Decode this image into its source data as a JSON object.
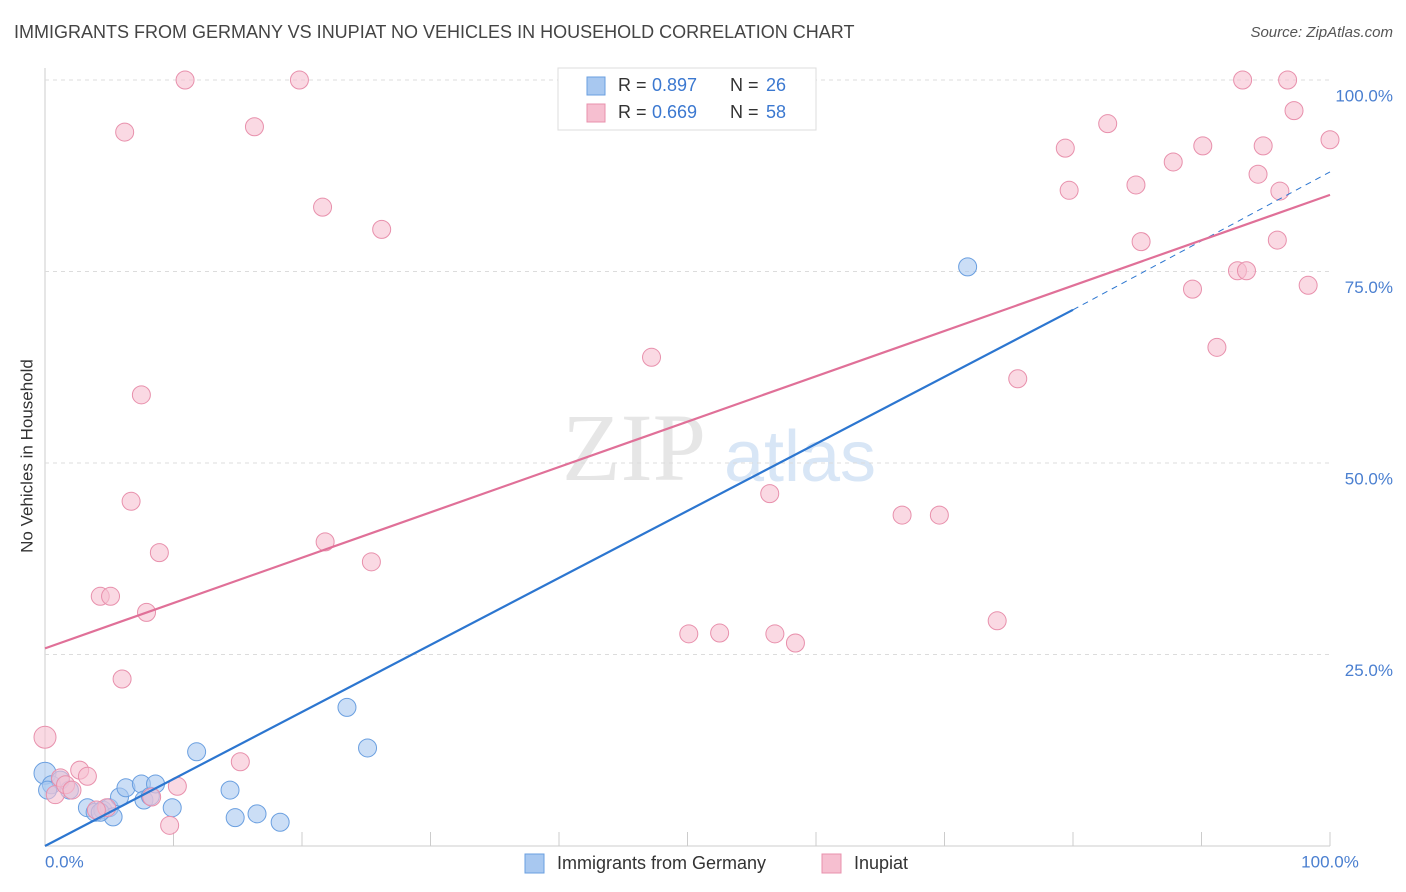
{
  "chart_data": {
    "type": "scatter",
    "title": "IMMIGRANTS FROM GERMANY VS INUPIAT NO VEHICLES IN HOUSEHOLD CORRELATION CHART",
    "source": "Source: ZipAtlas.com",
    "watermark": [
      "ZIP",
      "atlas"
    ],
    "y_label": "No Vehicles in Household",
    "xlim": [
      0,
      100
    ],
    "ylim": [
      0,
      100
    ],
    "xticks": [
      {
        "value": 0,
        "label": "0.0%"
      },
      {
        "value": 100,
        "label": "100.0%"
      }
    ],
    "xtick_marks": [
      10,
      20,
      30,
      40,
      50,
      60,
      70,
      80,
      90,
      100
    ],
    "yticks": [
      {
        "value": 25,
        "label": "25.0%"
      },
      {
        "value": 50,
        "label": "50.0%"
      },
      {
        "value": 75,
        "label": "75.0%"
      },
      {
        "value": 100,
        "label": "100.0%"
      }
    ],
    "grid": true,
    "r_label": "R =",
    "n_label": "N =",
    "series": [
      {
        "name": "Immigrants from Germany",
        "color": "#a8c8f0",
        "stroke": "#6a9fe0",
        "line_color": "#2c76d0",
        "r": 0.897,
        "n": 26,
        "x": [
          0,
          0.5,
          1.2,
          3.3,
          3.9,
          4.5,
          5.0,
          5.3,
          5.8,
          6.3,
          7.5,
          7.7,
          8.2,
          8.6,
          9.9,
          11.8,
          14.4,
          14.8,
          16.5,
          18.3,
          23.5,
          25.1,
          71.8,
          1.9,
          4.3,
          0.2
        ],
        "values": [
          9.5,
          8.0,
          8.6,
          5.0,
          4.4,
          4.7,
          5.0,
          3.8,
          6.4,
          7.6,
          8.1,
          6.0,
          6.5,
          8.1,
          5.0,
          12.3,
          7.3,
          3.7,
          4.2,
          3.1,
          18.1,
          12.8,
          75.6,
          7.3,
          4.4,
          7.3
        ],
        "trend": {
          "x": [
            0,
            80
          ],
          "y": [
            0,
            70
          ]
        },
        "trend_extension": {
          "x": [
            80,
            100
          ],
          "y": [
            70,
            88
          ]
        }
      },
      {
        "name": "Inupiat",
        "color": "#f6bfd0",
        "stroke": "#e890ac",
        "line_color": "#e07098",
        "r": 0.669,
        "n": 58,
        "x": [
          0,
          0.8,
          1.2,
          1.6,
          2.1,
          2.7,
          3.3,
          4.3,
          5.1,
          4.8,
          6.2,
          6.0,
          6.7,
          7.5,
          7.9,
          8.3,
          8.9,
          9.7,
          10.3,
          10.9,
          15.2,
          16.3,
          19.8,
          21.6,
          21.8,
          25.4,
          26.2,
          47.2,
          50.1,
          52.5,
          56.4,
          56.8,
          58.4,
          66.7,
          69.6,
          74.1,
          75.7,
          79.4,
          79.7,
          82.7,
          84.9,
          85.3,
          87.8,
          89.3,
          90.1,
          91.2,
          92.8,
          93.5,
          93.2,
          94.4,
          94.8,
          95.9,
          96.1,
          96.7,
          97.2,
          98.3,
          100,
          4.0
        ],
        "values": [
          14.2,
          6.7,
          8.9,
          8.0,
          7.3,
          9.9,
          9.1,
          32.6,
          32.6,
          5.0,
          93.2,
          21.8,
          45.0,
          58.9,
          30.5,
          6.4,
          38.3,
          2.7,
          7.8,
          100,
          11.0,
          93.9,
          100,
          83.4,
          39.7,
          37.1,
          80.5,
          63.8,
          27.7,
          27.8,
          46.0,
          27.7,
          26.5,
          43.2,
          43.2,
          29.4,
          61.0,
          91.1,
          85.6,
          94.3,
          86.3,
          78.9,
          89.3,
          72.7,
          91.4,
          65.1,
          75.1,
          75.1,
          100,
          87.7,
          91.4,
          79.1,
          85.5,
          100,
          96.0,
          73.2,
          92.2,
          4.7
        ],
        "trend": {
          "x": [
            0,
            100
          ],
          "y": [
            25.8,
            85.0
          ]
        }
      }
    ]
  }
}
